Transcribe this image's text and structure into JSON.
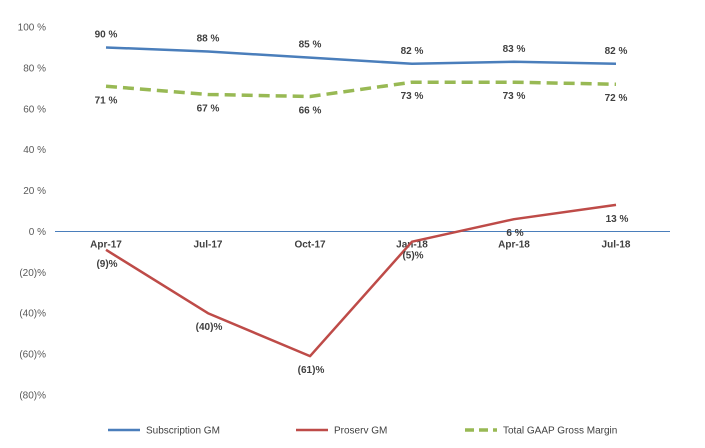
{
  "chart_data": {
    "type": "line",
    "categories": [
      "Apr-17",
      "Jul-17",
      "Oct-17",
      "Jan-18",
      "Apr-18",
      "Jul-18"
    ],
    "ylim": [
      -80,
      100
    ],
    "yticks": [
      100,
      80,
      60,
      40,
      20,
      0,
      -20,
      -40,
      -60,
      -80
    ],
    "ytick_labels": [
      "100 %",
      "80 %",
      "60 %",
      "40 %",
      "20 %",
      "0 %",
      "(20)%",
      "(40)%",
      "(60)%",
      "(80)%"
    ],
    "grid": false,
    "legend_position": "bottom",
    "series": [
      {
        "name": "Subscription GM",
        "values": [
          90,
          88,
          85,
          82,
          83,
          82
        ],
        "labels": [
          "90 %",
          "88 %",
          "85 %",
          "82 %",
          "83 %",
          "82 %"
        ],
        "color": "#4a7ebb",
        "style": "solid",
        "label_side": "above"
      },
      {
        "name": "Proserv GM",
        "values": [
          -9,
          -40,
          -61,
          -5,
          6,
          13
        ],
        "labels": [
          "(9)%",
          "(40)%",
          "(61)%",
          "(5)%",
          "6 %",
          "13 %"
        ],
        "color": "#be4b48",
        "style": "solid",
        "label_side": "below"
      },
      {
        "name": "Total GAAP Gross Margin",
        "values": [
          71,
          67,
          66,
          73,
          73,
          72
        ],
        "labels": [
          "71 %",
          "67 %",
          "66 %",
          "73 %",
          "73 %",
          "72 %"
        ],
        "color": "#98b954",
        "style": "dashed",
        "label_side": "below"
      }
    ]
  }
}
